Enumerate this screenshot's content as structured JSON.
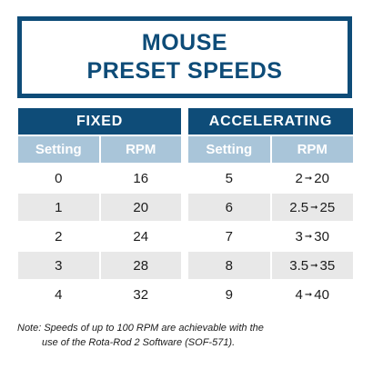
{
  "title": {
    "line1": "MOUSE",
    "line2": "PRESET SPEEDS"
  },
  "fixed": {
    "header": "FIXED",
    "columns": [
      "Setting",
      "RPM"
    ],
    "rows": [
      {
        "setting": "0",
        "rpm": "16"
      },
      {
        "setting": "1",
        "rpm": "20"
      },
      {
        "setting": "2",
        "rpm": "24"
      },
      {
        "setting": "3",
        "rpm": "28"
      },
      {
        "setting": "4",
        "rpm": "32"
      }
    ]
  },
  "accelerating": {
    "header": "ACCELERATING",
    "columns": [
      "Setting",
      "RPM"
    ],
    "rows": [
      {
        "setting": "5",
        "rpm_from": "2",
        "rpm_to": "20"
      },
      {
        "setting": "6",
        "rpm_from": "2.5",
        "rpm_to": "25"
      },
      {
        "setting": "7",
        "rpm_from": "3",
        "rpm_to": "30"
      },
      {
        "setting": "8",
        "rpm_from": "3.5",
        "rpm_to": "35"
      },
      {
        "setting": "9",
        "rpm_from": "4",
        "rpm_to": "40"
      }
    ]
  },
  "note": {
    "line1": "Note: Speeds of up to 100 RPM are achievable with the",
    "line2": "use of the Rota-Rod 2 Software (SOF-571)."
  },
  "colors": {
    "brand_blue": "#0e4c78",
    "column_header": "#a9c5d9",
    "row_shade": "#e8e8e8"
  },
  "icons": {
    "range_arrow": "right-arrow-icon"
  }
}
